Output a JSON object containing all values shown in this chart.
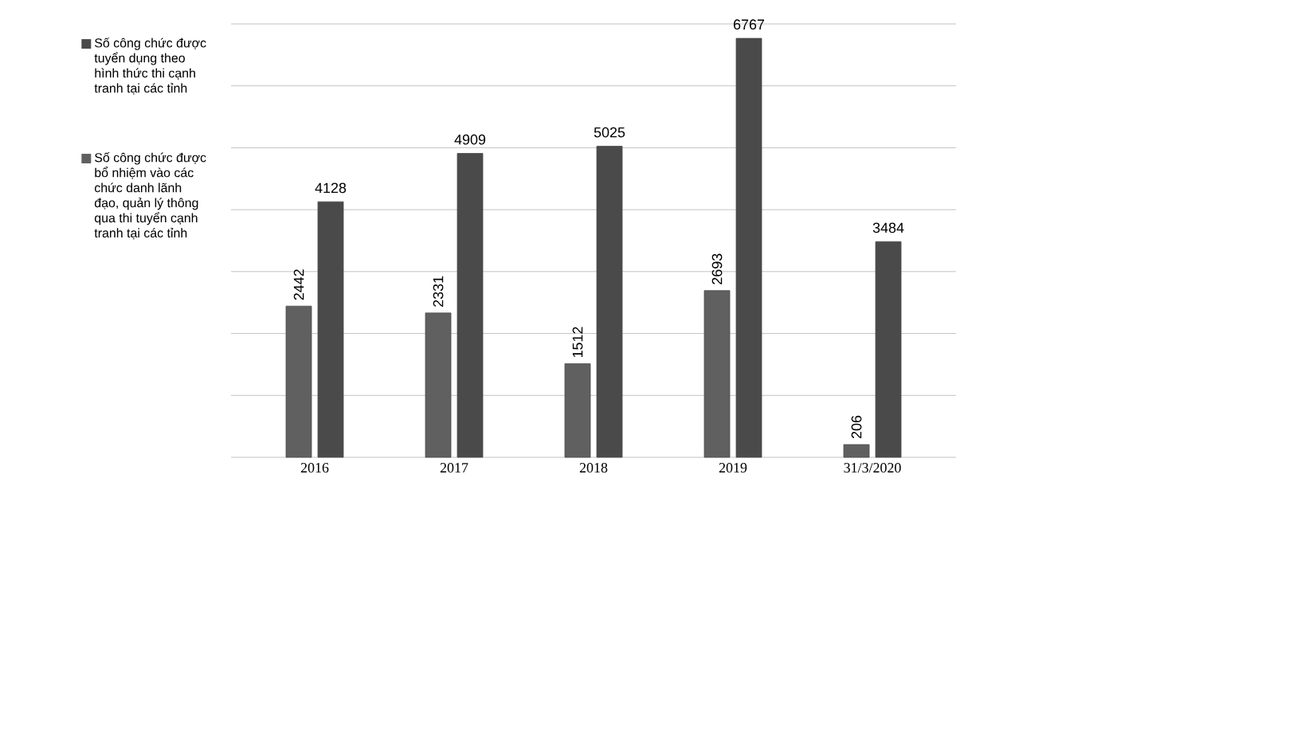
{
  "chart_data": {
    "type": "bar",
    "categories": [
      "2016",
      "2017",
      "2018",
      "2019",
      "31/3/2020"
    ],
    "series": [
      {
        "name": "Số công chức được bổ nhiệm vào các chức danh lãnh đạo, quản lý thông qua thi tuyển cạnh tranh tại các tỉnh",
        "color": "#606060",
        "values": [
          2442,
          2331,
          1512,
          2693,
          206
        ]
      },
      {
        "name": "Số công chức được tuyển dụng theo hình thức thi cạnh tranh tại các tỉnh",
        "color": "#4a4a4a",
        "values": [
          4128,
          4909,
          5025,
          6767,
          3484
        ]
      }
    ],
    "ylim": [
      0,
      7000
    ],
    "yticks": [
      {
        "value": 0,
        "label": null
      },
      {
        "value": 1000,
        "label": null
      },
      {
        "value": 2000,
        "label": null
      },
      {
        "value": 3000,
        "label": null
      },
      {
        "value": 4000,
        "label": null
      },
      {
        "value": 5000,
        "label": null
      },
      {
        "value": 6000,
        "label": null
      },
      {
        "value": 7000,
        "label": null
      }
    ],
    "grid": "y",
    "legend": "left",
    "data_labels": true,
    "tick_labels": "x"
  }
}
